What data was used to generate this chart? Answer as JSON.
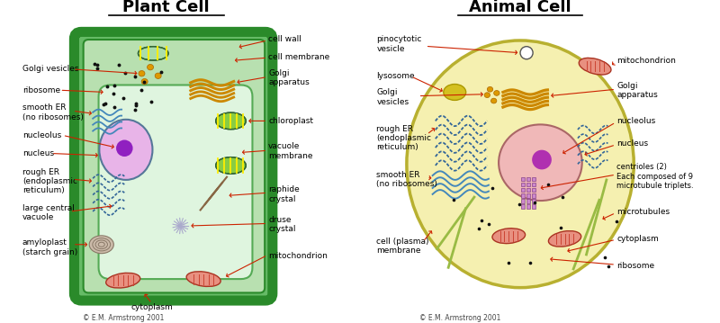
{
  "plant_title": "Plant Cell",
  "animal_title": "Animal Cell",
  "bg_color": "#ffffff",
  "copyright": "© E.M. Armstrong 2001",
  "plant_cell_dark": "#2a8a2a",
  "plant_cell_mid": "#66bb66",
  "plant_cell_light": "#b8e0b0",
  "plant_vacuole": "#dff5df",
  "plant_nucleus_fill": "#e8b4e8",
  "plant_nucleolus": "#9020c0",
  "animal_cell_fill": "#f5f0b0",
  "animal_cell_border": "#b8b030",
  "animal_nucleus_fill": "#f0b8b8",
  "animal_nucleolus": "#b030b0",
  "mito_fill": "#e89080",
  "mito_edge": "#aa3322",
  "mito_ridge": "#cc4433",
  "golgi_color": "#cc8800",
  "chloro_fill": "#88cc44",
  "chloro_edge": "#336633",
  "chloro_stripe": "#ffee00",
  "lyso_fill": "#d4c020",
  "lyso_edge": "#aa9900",
  "er_rough_color": "#336699",
  "er_smooth_color": "#4488bb",
  "ribosome_color": "#111111",
  "crystal_color": "#886644",
  "druse_color": "#aaaacc",
  "amylo_color": "#ccbbaa",
  "amylo_edge": "#887766",
  "centriole_fill": "#cc88cc",
  "centriole_edge": "#884488",
  "microtubule_color": "#99bb44",
  "golgi_vesicle_fill": "#dd9900",
  "golgi_vesicle_edge": "#aa6600",
  "arrow_color": "#cc2200",
  "label_fontsize": 6.5,
  "title_fontsize": 13
}
